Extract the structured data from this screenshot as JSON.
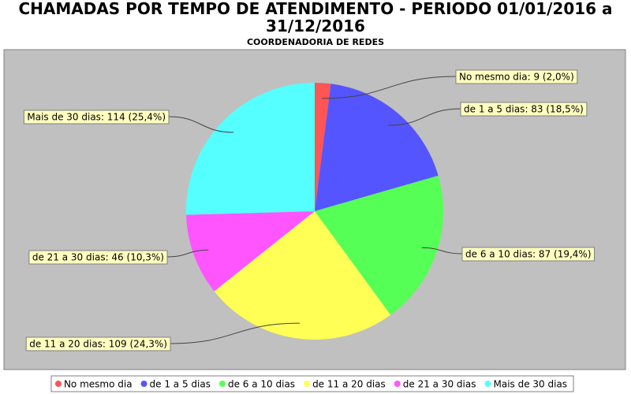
{
  "chart_data": {
    "type": "pie",
    "title": "CHAMADAS POR TEMPO DE ATENDIMENTO - PERIODO 01/01/2016 a 31/12/2016",
    "subtitle": "COORDENADORIA DE REDES",
    "categories": [
      "No mesmo dia",
      "de 1 a 5 dias",
      "de 6 a 10 dias",
      "de 11 a 20 dias",
      "de 21 a 30 dias",
      "Mais de 30 dias"
    ],
    "values": [
      9,
      83,
      87,
      109,
      46,
      114
    ],
    "value_labels": [
      "No mesmo dia: 9 (2,0%)",
      "de 1 a 5 dias: 83 (18,5%)",
      "de 6 a 10 dias: 87 (19,4%)",
      "de 11 a 20 dias: 109 (24,3%)",
      "de 21 a 30 dias: 46 (10,3%)",
      "Mais de 30 dias: 114 (25,4%)"
    ],
    "colors": [
      "#ff5555",
      "#5555ff",
      "#55ff55",
      "#ffff55",
      "#ff55ff",
      "#55ffff"
    ],
    "legend": "bottom"
  }
}
